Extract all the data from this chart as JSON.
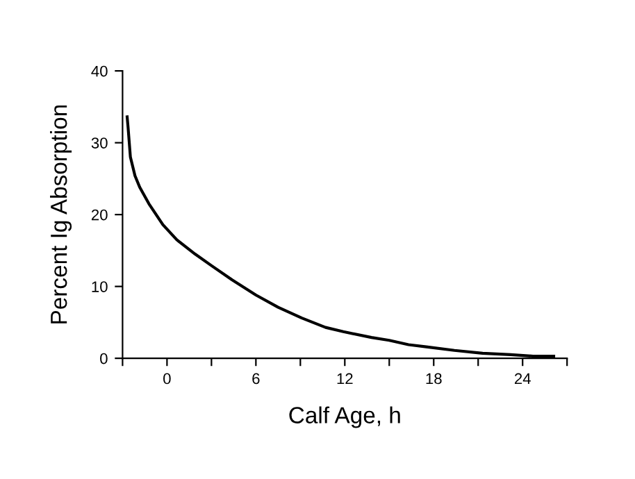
{
  "chart_data": {
    "type": "line",
    "xlabel": "Calf Age, h",
    "ylabel": "Percent Ig Absorption",
    "series": [
      {
        "color": "#000000",
        "x": [
          -2.69,
          -2.63,
          -2.47,
          -2.16,
          -1.84,
          -1.22,
          -0.28,
          0.66,
          1.9,
          3.0,
          4.4,
          6.0,
          7.5,
          9.1,
          10.7,
          11.9,
          13.8,
          15.0,
          16.3,
          17.5,
          19.4,
          21.3,
          23.2,
          24.7,
          26.1
        ],
        "values": [
          33.6,
          32.2,
          28,
          25.4,
          23.8,
          21.5,
          18.6,
          16.5,
          14.5,
          12.9,
          10.9,
          8.8,
          7.1,
          5.6,
          4.3,
          3.7,
          2.9,
          2.5,
          1.9,
          1.6,
          1.1,
          0.7,
          0.5,
          0.3,
          0.3
        ]
      }
    ],
    "xlim": [
      -3,
      27
    ],
    "xticks": [
      {
        "value": -3,
        "label": null
      },
      0,
      {
        "value": 3,
        "label": null
      },
      6,
      {
        "value": 9,
        "label": null
      },
      12,
      {
        "value": 15,
        "label": null
      },
      18,
      {
        "value": 21,
        "label": null
      },
      24,
      {
        "value": 27,
        "label": null
      }
    ],
    "ylim": [
      0,
      40
    ],
    "yticks": [
      0,
      10,
      20,
      30,
      40
    ],
    "grid": false,
    "marker": "none",
    "line_style": "solid"
  }
}
